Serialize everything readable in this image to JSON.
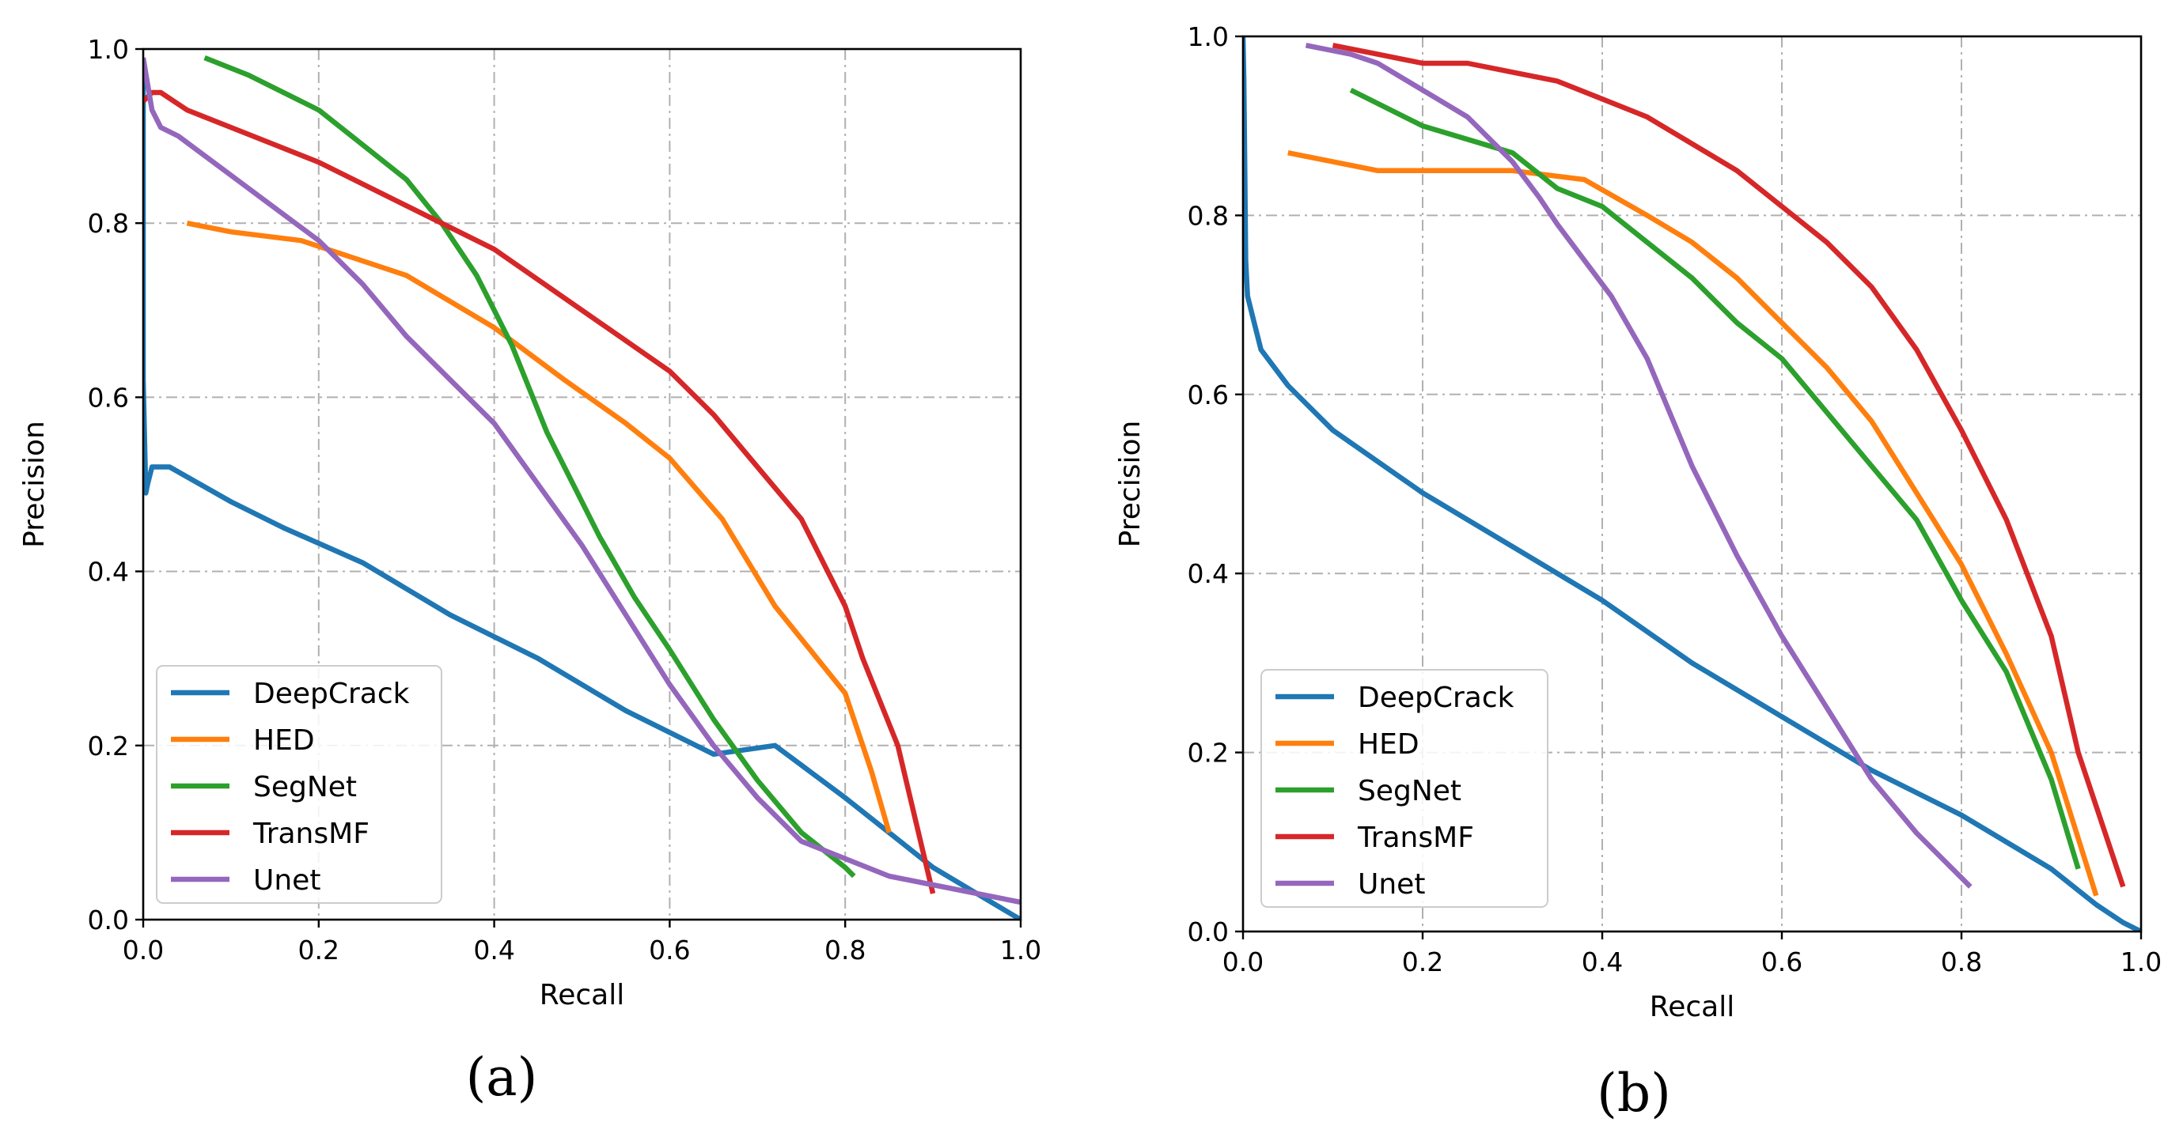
{
  "chart_data": [
    {
      "type": "line",
      "panel_label": "(a)",
      "xlabel": "Recall",
      "ylabel": "Precision",
      "xlim": [
        0.0,
        1.0
      ],
      "ylim": [
        0.0,
        1.0
      ],
      "xticks": [
        "0.0",
        "0.2",
        "0.4",
        "0.6",
        "0.8",
        "1.0"
      ],
      "yticks": [
        "0.0",
        "0.2",
        "0.4",
        "0.6",
        "0.8",
        "1.0"
      ],
      "grid": true,
      "legend_position": "bottom-left",
      "series": [
        {
          "name": "DeepCrack",
          "color": "#1f77b4",
          "x": [
            0.0,
            0.0,
            0.003,
            0.005,
            0.01,
            0.03,
            0.1,
            0.16,
            0.25,
            0.35,
            0.45,
            0.55,
            0.65,
            0.72,
            0.76,
            0.8,
            0.85,
            0.9,
            0.95,
            1.0
          ],
          "y": [
            0.99,
            0.62,
            0.49,
            0.5,
            0.52,
            0.52,
            0.48,
            0.45,
            0.41,
            0.35,
            0.3,
            0.24,
            0.19,
            0.2,
            0.17,
            0.14,
            0.1,
            0.06,
            0.03,
            0.0
          ]
        },
        {
          "name": "HED",
          "color": "#ff7f0e",
          "x": [
            0.05,
            0.1,
            0.18,
            0.3,
            0.4,
            0.48,
            0.55,
            0.6,
            0.66,
            0.72,
            0.8,
            0.83,
            0.85
          ],
          "y": [
            0.8,
            0.79,
            0.78,
            0.74,
            0.68,
            0.62,
            0.57,
            0.53,
            0.46,
            0.36,
            0.26,
            0.17,
            0.1
          ]
        },
        {
          "name": "SegNet",
          "color": "#2ca02c",
          "x": [
            0.07,
            0.12,
            0.18,
            0.2,
            0.25,
            0.3,
            0.34,
            0.38,
            0.42,
            0.46,
            0.52,
            0.56,
            0.6,
            0.65,
            0.7,
            0.75,
            0.8,
            0.81
          ],
          "y": [
            0.99,
            0.97,
            0.94,
            0.93,
            0.89,
            0.85,
            0.8,
            0.74,
            0.66,
            0.56,
            0.44,
            0.37,
            0.31,
            0.23,
            0.16,
            0.1,
            0.06,
            0.05
          ]
        },
        {
          "name": "TransMF",
          "color": "#d62728",
          "x": [
            0.0,
            0.01,
            0.02,
            0.05,
            0.1,
            0.15,
            0.2,
            0.3,
            0.4,
            0.5,
            0.6,
            0.65,
            0.7,
            0.75,
            0.8,
            0.82,
            0.86,
            0.9
          ],
          "y": [
            0.94,
            0.95,
            0.95,
            0.93,
            0.91,
            0.89,
            0.87,
            0.82,
            0.77,
            0.7,
            0.63,
            0.58,
            0.52,
            0.46,
            0.36,
            0.3,
            0.2,
            0.03
          ]
        },
        {
          "name": "Unet",
          "color": "#9467bd",
          "x": [
            0.0,
            0.005,
            0.01,
            0.02,
            0.04,
            0.08,
            0.12,
            0.16,
            0.2,
            0.25,
            0.3,
            0.35,
            0.4,
            0.45,
            0.5,
            0.55,
            0.6,
            0.65,
            0.7,
            0.75,
            0.8,
            0.85,
            0.9,
            1.0
          ],
          "y": [
            0.99,
            0.96,
            0.93,
            0.91,
            0.9,
            0.87,
            0.84,
            0.81,
            0.78,
            0.73,
            0.67,
            0.62,
            0.57,
            0.5,
            0.43,
            0.35,
            0.27,
            0.2,
            0.14,
            0.09,
            0.07,
            0.05,
            0.04,
            0.02
          ]
        }
      ]
    },
    {
      "type": "line",
      "panel_label": "(b)",
      "xlabel": "Recall",
      "ylabel": "Precision",
      "xlim": [
        0.0,
        1.0
      ],
      "ylim": [
        0.0,
        1.0
      ],
      "xticks": [
        "0.0",
        "0.2",
        "0.4",
        "0.6",
        "0.8",
        "1.0"
      ],
      "yticks": [
        "0.0",
        "0.2",
        "0.4",
        "0.6",
        "0.8",
        "1.0"
      ],
      "grid": true,
      "legend_position": "bottom-left",
      "series": [
        {
          "name": "DeepCrack",
          "color": "#1f77b4",
          "x": [
            0.0,
            0.001,
            0.002,
            0.003,
            0.005,
            0.01,
            0.02,
            0.05,
            0.1,
            0.2,
            0.3,
            0.4,
            0.5,
            0.6,
            0.7,
            0.8,
            0.85,
            0.9,
            0.95,
            0.98,
            1.0
          ],
          "y": [
            1.0,
            0.95,
            0.85,
            0.75,
            0.71,
            0.69,
            0.65,
            0.61,
            0.56,
            0.49,
            0.43,
            0.37,
            0.3,
            0.24,
            0.18,
            0.13,
            0.1,
            0.07,
            0.03,
            0.01,
            0.0
          ]
        },
        {
          "name": "HED",
          "color": "#ff7f0e",
          "x": [
            0.05,
            0.15,
            0.25,
            0.3,
            0.38,
            0.45,
            0.5,
            0.55,
            0.6,
            0.65,
            0.7,
            0.75,
            0.8,
            0.85,
            0.9,
            0.95
          ],
          "y": [
            0.87,
            0.85,
            0.85,
            0.85,
            0.84,
            0.8,
            0.77,
            0.73,
            0.68,
            0.63,
            0.57,
            0.49,
            0.41,
            0.31,
            0.2,
            0.04
          ]
        },
        {
          "name": "SegNet",
          "color": "#2ca02c",
          "x": [
            0.12,
            0.2,
            0.3,
            0.35,
            0.4,
            0.45,
            0.5,
            0.55,
            0.6,
            0.65,
            0.7,
            0.75,
            0.8,
            0.85,
            0.9,
            0.93
          ],
          "y": [
            0.94,
            0.9,
            0.87,
            0.83,
            0.81,
            0.77,
            0.73,
            0.68,
            0.64,
            0.58,
            0.52,
            0.46,
            0.37,
            0.29,
            0.17,
            0.07
          ]
        },
        {
          "name": "TransMF",
          "color": "#d62728",
          "x": [
            0.1,
            0.15,
            0.2,
            0.25,
            0.3,
            0.35,
            0.4,
            0.45,
            0.5,
            0.55,
            0.6,
            0.65,
            0.7,
            0.75,
            0.8,
            0.85,
            0.9,
            0.93,
            0.98
          ],
          "y": [
            0.99,
            0.98,
            0.97,
            0.97,
            0.96,
            0.95,
            0.93,
            0.91,
            0.88,
            0.85,
            0.81,
            0.77,
            0.72,
            0.65,
            0.56,
            0.46,
            0.33,
            0.2,
            0.05
          ]
        },
        {
          "name": "Unet",
          "color": "#9467bd",
          "x": [
            0.07,
            0.12,
            0.15,
            0.2,
            0.25,
            0.3,
            0.33,
            0.35,
            0.38,
            0.41,
            0.45,
            0.5,
            0.55,
            0.6,
            0.65,
            0.7,
            0.75,
            0.8,
            0.81
          ],
          "y": [
            0.99,
            0.98,
            0.97,
            0.94,
            0.91,
            0.86,
            0.82,
            0.79,
            0.75,
            0.71,
            0.64,
            0.52,
            0.42,
            0.33,
            0.25,
            0.17,
            0.11,
            0.06,
            0.05
          ]
        }
      ]
    }
  ]
}
